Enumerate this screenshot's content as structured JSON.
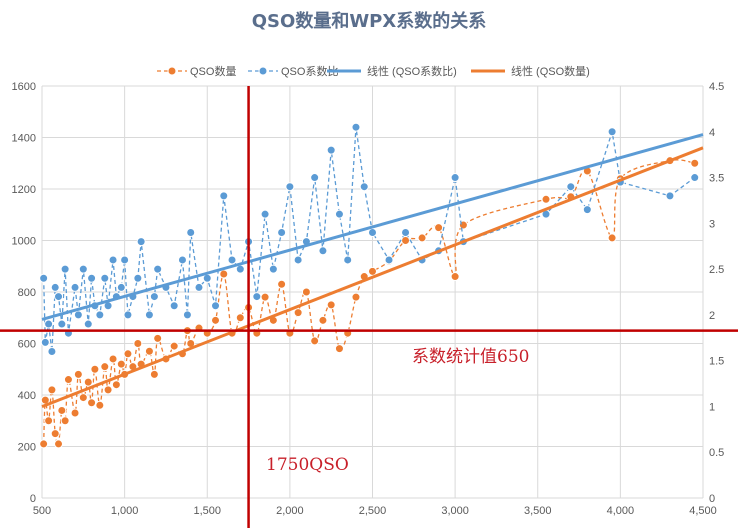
{
  "chart_data": {
    "type": "scatter",
    "title": "QSO数量和WPX系数的关系",
    "xlim": [
      500,
      4500
    ],
    "ylim": [
      0,
      1600
    ],
    "y2lim": [
      0,
      4.5
    ],
    "x_ticks": [
      "500",
      "1,000",
      "1,500",
      "2,000",
      "2,500",
      "3,000",
      "3,500",
      "4,000",
      "4,500"
    ],
    "y_ticks": [
      "0",
      "200",
      "400",
      "600",
      "800",
      "1000",
      "1200",
      "1400",
      "1600"
    ],
    "y2_ticks": [
      "0",
      "0.5",
      "1",
      "1.5",
      "2",
      "2.5",
      "3",
      "3.5",
      "4",
      "4.5"
    ],
    "grid": true,
    "legend_position": "top",
    "legend": [
      "QSO数量",
      "QSO系数比",
      "线性 (QSO系数比)",
      "线性 (QSO数量)"
    ],
    "colors": {
      "qso": "#ed7d31",
      "ratio": "#5b9bd5",
      "ref": "#c00000"
    },
    "series": [
      {
        "name": "QSO数量",
        "axis": "left",
        "line_style": "dashed-smooth",
        "x": [
          510,
          520,
          540,
          560,
          580,
          600,
          620,
          640,
          660,
          700,
          720,
          750,
          780,
          800,
          820,
          850,
          880,
          900,
          930,
          950,
          980,
          1000,
          1020,
          1050,
          1080,
          1100,
          1150,
          1180,
          1200,
          1250,
          1300,
          1350,
          1380,
          1400,
          1450,
          1500,
          1550,
          1600,
          1650,
          1700,
          1750,
          1800,
          1850,
          1900,
          1950,
          2000,
          2050,
          2100,
          2150,
          2200,
          2250,
          2300,
          2350,
          2400,
          2450,
          2500,
          2600,
          2700,
          2800,
          2900,
          3000,
          3050,
          3550,
          3700,
          3800,
          3950,
          4000,
          4300,
          4450
        ],
        "y": [
          210,
          380,
          300,
          420,
          250,
          210,
          340,
          300,
          460,
          330,
          480,
          390,
          450,
          370,
          500,
          360,
          510,
          420,
          540,
          440,
          520,
          480,
          560,
          510,
          600,
          520,
          570,
          480,
          620,
          540,
          590,
          560,
          650,
          600,
          660,
          640,
          690,
          870,
          640,
          700,
          740,
          640,
          780,
          690,
          830,
          640,
          720,
          800,
          610,
          690,
          750,
          580,
          640,
          780,
          860,
          880,
          920,
          1000,
          1010,
          1050,
          860,
          1060,
          1160,
          1170,
          1270,
          1010,
          1240,
          1310,
          1300
        ]
      },
      {
        "name": "QSO系数比",
        "axis": "right",
        "line_style": "dashed",
        "x": [
          510,
          520,
          540,
          560,
          580,
          600,
          620,
          640,
          660,
          700,
          720,
          750,
          780,
          800,
          820,
          850,
          880,
          900,
          930,
          950,
          980,
          1000,
          1020,
          1050,
          1080,
          1100,
          1150,
          1180,
          1200,
          1250,
          1300,
          1350,
          1380,
          1400,
          1450,
          1500,
          1550,
          1600,
          1650,
          1700,
          1750,
          1800,
          1850,
          1900,
          1950,
          2000,
          2050,
          2100,
          2150,
          2200,
          2250,
          2300,
          2350,
          2400,
          2450,
          2500,
          2600,
          2700,
          2800,
          2900,
          3000,
          3050,
          3550,
          3700,
          3800,
          3950,
          4000,
          4300,
          4450
        ],
        "y": [
          2.4,
          1.7,
          1.9,
          1.6,
          2.3,
          2.2,
          1.9,
          2.5,
          1.8,
          2.3,
          2.0,
          2.5,
          1.9,
          2.4,
          2.1,
          2.0,
          2.4,
          2.1,
          2.6,
          2.2,
          2.3,
          2.6,
          2.0,
          2.2,
          2.4,
          2.8,
          2.0,
          2.2,
          2.5,
          2.3,
          2.1,
          2.6,
          2.0,
          2.9,
          2.3,
          2.4,
          2.1,
          3.3,
          2.6,
          2.5,
          2.8,
          2.2,
          3.1,
          2.5,
          2.9,
          3.4,
          2.6,
          2.8,
          3.5,
          2.7,
          3.8,
          3.1,
          2.6,
          4.05,
          3.4,
          2.9,
          2.6,
          2.9,
          2.6,
          2.7,
          3.5,
          2.8,
          3.1,
          3.4,
          3.15,
          4.0,
          3.45,
          3.3,
          3.5
        ]
      },
      {
        "name": "线性 (QSO系数比)",
        "axis": "right",
        "type": "trendline",
        "x": [
          500,
          4500
        ],
        "y": [
          1.95,
          3.97
        ]
      },
      {
        "name": "线性 (QSO数量)",
        "axis": "left",
        "type": "trendline",
        "x": [
          500,
          4500
        ],
        "y": [
          355,
          1360
        ]
      }
    ],
    "reference_lines": [
      {
        "orientation": "vertical",
        "x": 1750,
        "label": "1750QSO"
      },
      {
        "orientation": "horizontal",
        "y": 650,
        "label": "系数统计值650"
      }
    ]
  }
}
